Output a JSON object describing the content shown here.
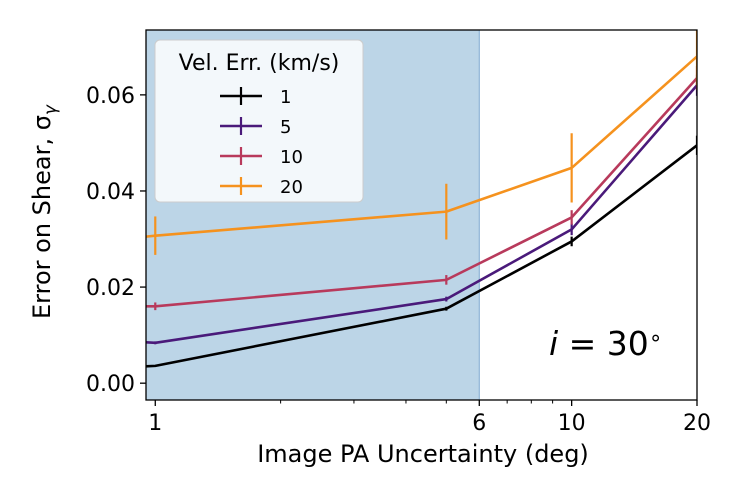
{
  "chart_data": {
    "type": "line",
    "xscale": "log",
    "xlabel": "Image PA Uncertainty (deg)",
    "ylabel": "Error on Shear, σ",
    "ylabel_sub": "γ",
    "xlim": [
      0.95,
      20
    ],
    "ylim": [
      -0.0035,
      0.0735
    ],
    "x_ticks": [
      1,
      6,
      10,
      20
    ],
    "x_tick_labels": [
      "1",
      "6",
      "10",
      "20"
    ],
    "y_ticks": [
      0.0,
      0.02,
      0.04,
      0.06
    ],
    "y_tick_labels": [
      "0.00",
      "0.02",
      "0.04",
      "0.06"
    ],
    "shaded_region": {
      "x": [
        0.95,
        6
      ],
      "color": "#bcd5e7"
    },
    "annotation": {
      "prefix": "i",
      "text": " = 30",
      "suffix": "∘"
    },
    "legend": {
      "title": "Vel. Err. (km/s)",
      "position": "upper-left"
    },
    "series": [
      {
        "name": "1",
        "color": "#000000",
        "x": [
          0.95,
          1,
          5,
          10,
          20
        ],
        "y": [
          0.0035,
          0.0036,
          0.0155,
          0.0295,
          0.0495
        ],
        "err": [
          0,
          0,
          0.0004,
          0.001,
          0.002
        ]
      },
      {
        "name": "5",
        "color": "#4a1a7a",
        "x": [
          0.95,
          1,
          5,
          10,
          20
        ],
        "y": [
          0.0085,
          0.0084,
          0.0175,
          0.032,
          0.062
        ],
        "err": [
          0,
          0.0003,
          0.0005,
          0.0012,
          0.0022
        ]
      },
      {
        "name": "10",
        "color": "#b83a5c",
        "x": [
          0.95,
          1,
          5,
          10,
          20
        ],
        "y": [
          0.016,
          0.016,
          0.0215,
          0.0345,
          0.0635
        ],
        "err": [
          0,
          0.0008,
          0.001,
          0.0015,
          0.0025
        ]
      },
      {
        "name": "20",
        "color": "#f5921e",
        "x": [
          0.95,
          1,
          5,
          10,
          20
        ],
        "y": [
          0.0305,
          0.0307,
          0.0357,
          0.0448,
          0.068
        ],
        "err": [
          0,
          0.004,
          0.0058,
          0.0072,
          0.006
        ]
      }
    ]
  }
}
